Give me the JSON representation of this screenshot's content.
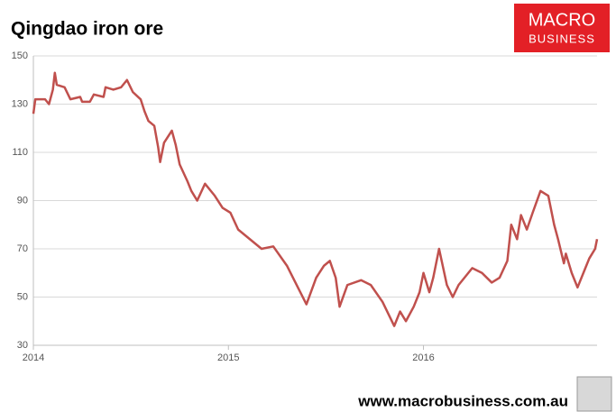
{
  "chart_data": {
    "type": "line",
    "title": "Qingdao iron ore",
    "x": [
      2014.0,
      2014.01,
      2014.06,
      2014.08,
      2014.1,
      2014.11,
      2014.12,
      2014.16,
      2014.19,
      2014.24,
      2014.25,
      2014.29,
      2014.31,
      2014.36,
      2014.37,
      2014.41,
      2014.45,
      2014.48,
      2014.51,
      2014.55,
      2014.57,
      2014.59,
      2014.62,
      2014.64,
      2014.65,
      2014.67,
      2014.71,
      2014.73,
      2014.75,
      2014.79,
      2014.81,
      2014.84,
      2014.88,
      2014.93,
      2014.97,
      2015.01,
      2015.05,
      2015.17,
      2015.23,
      2015.3,
      2015.35,
      2015.4,
      2015.45,
      2015.49,
      2015.52,
      2015.55,
      2015.57,
      2015.61,
      2015.68,
      2015.73,
      2015.79,
      2015.85,
      2015.88,
      2015.91,
      2015.95,
      2015.98,
      2016.0,
      2016.03,
      2016.05,
      2016.08,
      2016.12,
      2016.15,
      2016.18,
      2016.25,
      2016.3,
      2016.35,
      2016.39,
      2016.43,
      2016.45,
      2016.48,
      2016.5,
      2016.53,
      2016.56,
      2016.6,
      2016.64,
      2016.67,
      2016.69,
      2016.72,
      2016.73,
      2016.76,
      2016.79,
      2016.83,
      2016.85,
      2016.88,
      2016.89
    ],
    "series": [
      {
        "name": "Qingdao iron ore",
        "color": "#c0504d",
        "values": [
          126,
          132,
          132,
          130,
          136,
          143,
          138,
          137,
          132,
          133,
          131,
          131,
          134,
          133,
          137,
          136,
          137,
          140,
          135,
          132,
          127,
          123,
          121,
          112,
          106,
          114,
          119,
          113,
          105,
          98,
          94,
          90,
          97,
          92,
          87,
          85,
          78,
          70,
          71,
          63,
          55,
          47,
          58,
          63,
          65,
          58,
          46,
          55,
          57,
          55,
          48,
          38,
          44,
          40,
          46,
          52,
          60,
          52,
          58,
          70,
          55,
          50,
          55,
          62,
          60,
          56,
          58,
          65,
          80,
          74,
          84,
          78,
          85,
          94,
          92,
          80,
          74,
          64,
          68,
          60,
          54,
          62,
          66,
          70,
          74
        ]
      }
    ],
    "xlim": [
      2014,
      2016.89
    ],
    "xticks": [
      2014,
      2015,
      2016
    ],
    "ylim": [
      30,
      150
    ],
    "yticks": [
      30,
      50,
      70,
      90,
      110,
      130,
      150
    ],
    "grid": true
  },
  "logo": {
    "top": "MACRO",
    "bottom": "BUSINESS"
  },
  "footer": "www.macrobusiness.com.au"
}
